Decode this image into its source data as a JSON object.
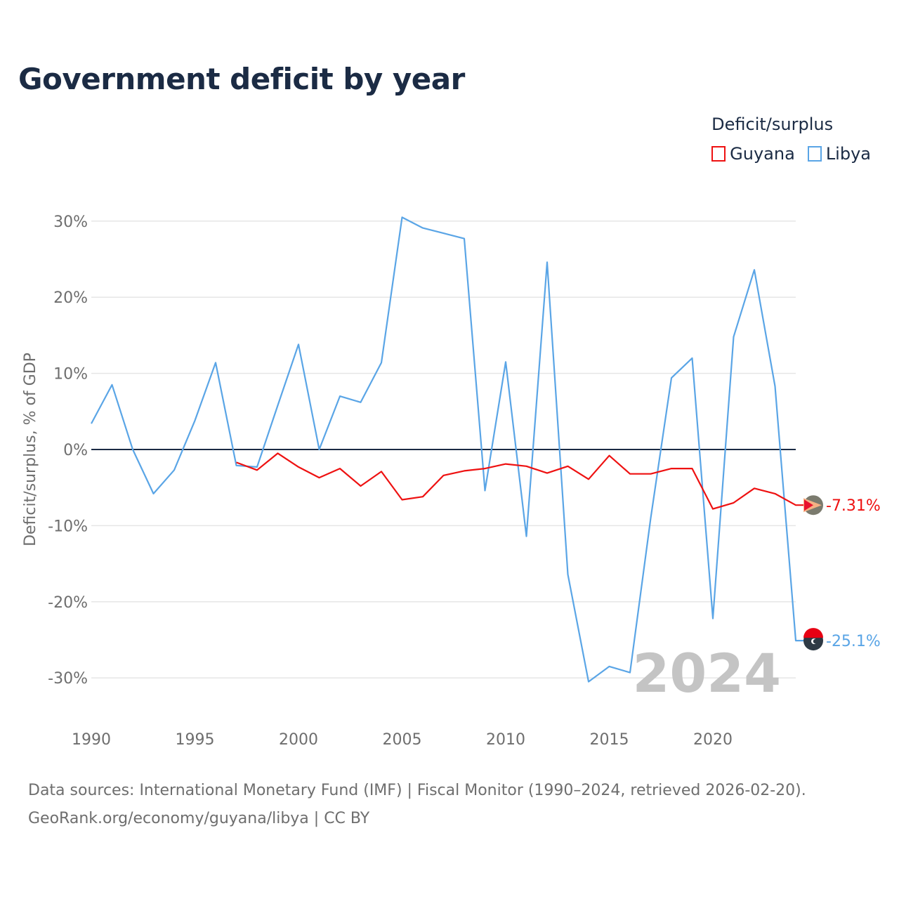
{
  "title": "Government deficit by year",
  "legend": {
    "title": "Deficit/surplus",
    "items": [
      {
        "label": "Guyana",
        "color": "#ee1111"
      },
      {
        "label": "Libya",
        "color": "#5aa5e6"
      }
    ]
  },
  "footer": {
    "line1": "Data sources: International Monetary Fund (IMF) | Fiscal Monitor (1990–2024, retrieved 2026-02-20).",
    "line2": "GeoRank.org/economy/guyana/libya | CC BY"
  },
  "chart_data": {
    "type": "line",
    "title": "Government deficit by year",
    "xlabel": "",
    "ylabel": "Deficit/surplus, % of GDP",
    "xlim": [
      1990,
      2024
    ],
    "ylim": [
      -35,
      32
    ],
    "x_ticks": [
      1990,
      1995,
      2000,
      2005,
      2010,
      2015,
      2020
    ],
    "x_tick_labels": [
      "1990",
      "1995",
      "2000",
      "2005",
      "2010",
      "2015",
      "2020"
    ],
    "y_ticks": [
      30,
      20,
      10,
      0,
      -10,
      -20,
      -30
    ],
    "y_tick_labels": [
      "30%",
      "20%",
      "10%",
      "0%",
      "-10%",
      "-20%",
      "-30%"
    ],
    "year_watermark": "2024",
    "series": [
      {
        "name": "Guyana",
        "color": "#ee1111",
        "end_label": "-7.31%",
        "x": [
          1997,
          1998,
          1999,
          2000,
          2001,
          2002,
          2003,
          2004,
          2005,
          2006,
          2007,
          2008,
          2009,
          2010,
          2011,
          2012,
          2013,
          2014,
          2015,
          2016,
          2017,
          2018,
          2019,
          2020,
          2021,
          2022,
          2023,
          2024
        ],
        "values": [
          -1.7,
          -2.7,
          -0.5,
          -2.3,
          -3.7,
          -2.5,
          -4.8,
          -2.9,
          -6.6,
          -6.2,
          -3.4,
          -2.8,
          -2.5,
          -1.9,
          -2.2,
          -3.1,
          -2.2,
          -3.9,
          -0.8,
          -3.2,
          -3.2,
          -2.5,
          -2.5,
          -7.8,
          -7.0,
          -5.1,
          -5.8,
          -7.31
        ]
      },
      {
        "name": "Libya",
        "color": "#5aa5e6",
        "end_label": "-25.1%",
        "x": [
          1990,
          1991,
          1992,
          1993,
          1994,
          1995,
          1996,
          1997,
          1998,
          1999,
          2000,
          2001,
          2002,
          2003,
          2004,
          2005,
          2006,
          2007,
          2008,
          2009,
          2010,
          2011,
          2012,
          2013,
          2014,
          2015,
          2016,
          2017,
          2018,
          2019,
          2020,
          2021,
          2022,
          2023,
          2024
        ],
        "values": [
          3.4,
          8.5,
          0.0,
          -5.8,
          -2.7,
          3.8,
          11.4,
          -2.1,
          -2.3,
          5.8,
          13.8,
          0.0,
          7.0,
          6.2,
          11.4,
          30.5,
          29.1,
          28.4,
          27.7,
          -5.4,
          11.5,
          -11.4,
          24.6,
          -16.4,
          -30.5,
          -28.5,
          -29.3,
          -9.0,
          9.4,
          12.0,
          -22.2,
          14.8,
          23.6,
          8.3,
          -25.1
        ]
      }
    ]
  }
}
